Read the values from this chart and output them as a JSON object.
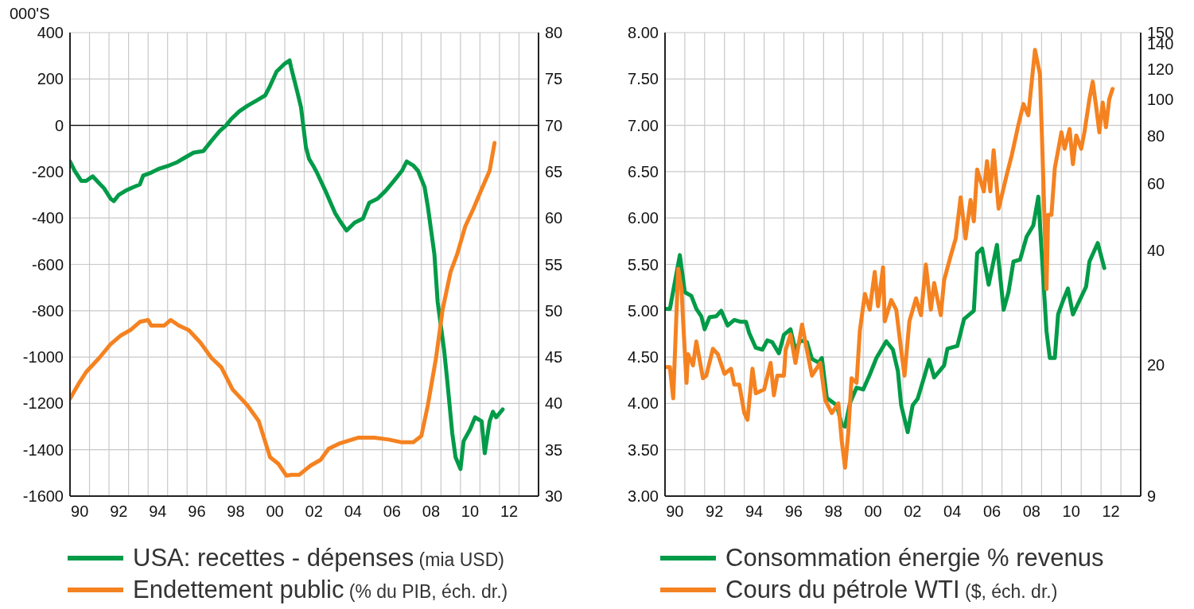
{
  "chart_data": [
    {
      "type": "line",
      "ylabel": "000'S",
      "xlim": [
        "1990-01",
        "2014-01"
      ],
      "xticks": [
        {
          "value": "1990-07",
          "label": "90"
        },
        {
          "value": "1991-01",
          "label": null
        },
        {
          "value": "1992-01",
          "label": null
        },
        {
          "value": "1992-07",
          "label": "92"
        },
        {
          "value": "1993-01",
          "label": null
        },
        {
          "value": "1994-01",
          "label": null
        },
        {
          "value": "1994-07",
          "label": "94"
        },
        {
          "value": "1995-01",
          "label": null
        },
        {
          "value": "1996-01",
          "label": null
        },
        {
          "value": "1996-07",
          "label": "96"
        },
        {
          "value": "1997-01",
          "label": null
        },
        {
          "value": "1998-01",
          "label": null
        },
        {
          "value": "1998-07",
          "label": "98"
        },
        {
          "value": "1999-01",
          "label": null
        },
        {
          "value": "2000-01",
          "label": null
        },
        {
          "value": "2000-07",
          "label": "00"
        },
        {
          "value": "2001-01",
          "label": null
        },
        {
          "value": "2002-01",
          "label": null
        },
        {
          "value": "2002-07",
          "label": "02"
        },
        {
          "value": "2003-01",
          "label": null
        },
        {
          "value": "2004-01",
          "label": null
        },
        {
          "value": "2004-07",
          "label": "04"
        },
        {
          "value": "2005-01",
          "label": null
        },
        {
          "value": "2006-01",
          "label": null
        },
        {
          "value": "2006-07",
          "label": "06"
        },
        {
          "value": "2007-01",
          "label": null
        },
        {
          "value": "2008-01",
          "label": null
        },
        {
          "value": "2008-07",
          "label": "08"
        },
        {
          "value": "2009-01",
          "label": null
        },
        {
          "value": "2010-01",
          "label": null
        },
        {
          "value": "2010-07",
          "label": "10"
        },
        {
          "value": "2011-01",
          "label": null
        },
        {
          "value": "2012-01",
          "label": null
        },
        {
          "value": "2012-07",
          "label": "12"
        },
        {
          "value": "2013-01",
          "label": null
        }
      ],
      "ylim": [
        -1600,
        400
      ],
      "yticks": [
        -1600,
        -1400,
        -1200,
        -1000,
        -800,
        -600,
        -400,
        -200,
        0,
        200,
        400
      ],
      "y2lim": [
        30,
        80
      ],
      "y2ticks": [
        30,
        35,
        40,
        45,
        50,
        55,
        60,
        65,
        70,
        75,
        80
      ],
      "grid": true,
      "legend": "bottom",
      "ref_lines": [
        {
          "axis": "y",
          "value": 0,
          "color": "#000000"
        }
      ],
      "series": [
        {
          "name": "USA: recettes - dépenses (mia USD)",
          "color": "#009b48",
          "x": [
            "1990-01",
            "1990-04",
            "1990-08",
            "1990-11",
            "1991-03",
            "1991-07",
            "1991-10",
            "1992-02",
            "1992-04",
            "1992-07",
            "1992-11",
            "1993-03",
            "1993-08",
            "1993-10",
            "1994-03",
            "1994-08",
            "1995-02",
            "1995-07",
            "1995-11",
            "1996-05",
            "1996-11",
            "1997-04",
            "1997-09",
            "1998-01",
            "1998-04",
            "1998-09",
            "1999-02",
            "1999-08",
            "2000-01",
            "2000-04",
            "2000-08",
            "2001-01",
            "2001-04",
            "2001-05",
            "2001-09",
            "2001-11",
            "2002-02",
            "2002-04",
            "2002-07",
            "2002-09",
            "2003-02",
            "2003-08",
            "2003-11",
            "2004-03",
            "2004-08",
            "2005-01",
            "2005-05",
            "2005-10",
            "2006-03",
            "2006-08",
            "2007-01",
            "2007-04",
            "2007-08",
            "2007-11",
            "2008-03",
            "2008-05",
            "2008-09",
            "2008-11",
            "2009-03",
            "2009-05",
            "2009-08",
            "2009-10",
            "2010-01",
            "2010-03",
            "2010-07",
            "2010-10",
            "2011-02",
            "2011-04",
            "2011-07",
            "2011-09",
            "2011-11",
            "2012-03"
          ],
          "values": [
            -156,
            -197,
            -240,
            -240,
            -220,
            -250,
            -272,
            -317,
            -327,
            -300,
            -283,
            -270,
            -255,
            -217,
            -204,
            -187,
            -173,
            -159,
            -142,
            -118,
            -111,
            -67,
            -25,
            0,
            26,
            60,
            84,
            108,
            129,
            170,
            232,
            266,
            280,
            249,
            136,
            78,
            -94,
            -145,
            -180,
            -207,
            -283,
            -379,
            -413,
            -454,
            -420,
            -403,
            -334,
            -317,
            -283,
            -241,
            -197,
            -156,
            -173,
            -197,
            -266,
            -351,
            -557,
            -763,
            -969,
            -1106,
            -1329,
            -1432,
            -1483,
            -1363,
            -1312,
            -1260,
            -1277,
            -1415,
            -1277,
            -1236,
            -1260,
            -1226
          ]
        },
        {
          "name": "Endettement public (% du PIB, éch. dr.)",
          "color": "#f58220",
          "axis": "y2",
          "x": [
            "1990-01",
            "1990-07",
            "1990-11",
            "1991-07",
            "1992-02",
            "1992-08",
            "1993-02",
            "1993-08",
            "1994-01",
            "1994-03",
            "1994-11",
            "1995-03",
            "1995-08",
            "1996-02",
            "1996-09",
            "1997-04",
            "1997-10",
            "1998-05",
            "1999-02",
            "1999-09",
            "2000-04",
            "2000-09",
            "2001-02",
            "2001-05",
            "2001-10",
            "2002-05",
            "2002-11",
            "2003-04",
            "2003-11",
            "2004-10",
            "2005-08",
            "2006-05",
            "2007-01",
            "2007-08",
            "2008-01",
            "2008-05",
            "2008-10",
            "2009-02",
            "2009-07",
            "2009-11",
            "2010-04",
            "2010-09",
            "2011-02",
            "2011-07",
            "2011-10"
          ],
          "values": [
            40.5,
            42.3,
            43.4,
            44.9,
            46.4,
            47.3,
            47.9,
            48.8,
            49.0,
            48.4,
            48.4,
            49.0,
            48.4,
            47.9,
            46.6,
            44.9,
            43.9,
            41.5,
            39.8,
            38.1,
            34.2,
            33.5,
            32.2,
            32.3,
            32.3,
            33.3,
            33.9,
            35.1,
            35.7,
            36.3,
            36.3,
            36.1,
            35.8,
            35.8,
            36.5,
            39.8,
            44.9,
            50.1,
            54.2,
            56.1,
            59.1,
            61.0,
            63.1,
            65.1,
            68.1
          ]
        }
      ]
    },
    {
      "type": "line",
      "xlim": [
        "1990-01",
        "2014-01"
      ],
      "xticks": [
        {
          "value": "1990-07",
          "label": "90"
        },
        {
          "value": "1991-01",
          "label": null
        },
        {
          "value": "1992-01",
          "label": null
        },
        {
          "value": "1992-07",
          "label": "92"
        },
        {
          "value": "1993-01",
          "label": null
        },
        {
          "value": "1994-01",
          "label": null
        },
        {
          "value": "1994-07",
          "label": "94"
        },
        {
          "value": "1995-01",
          "label": null
        },
        {
          "value": "1996-01",
          "label": null
        },
        {
          "value": "1996-07",
          "label": "96"
        },
        {
          "value": "1997-01",
          "label": null
        },
        {
          "value": "1998-01",
          "label": null
        },
        {
          "value": "1998-07",
          "label": "98"
        },
        {
          "value": "1999-01",
          "label": null
        },
        {
          "value": "2000-01",
          "label": null
        },
        {
          "value": "2000-07",
          "label": "00"
        },
        {
          "value": "2001-01",
          "label": null
        },
        {
          "value": "2002-01",
          "label": null
        },
        {
          "value": "2002-07",
          "label": "02"
        },
        {
          "value": "2003-01",
          "label": null
        },
        {
          "value": "2004-01",
          "label": null
        },
        {
          "value": "2004-07",
          "label": "04"
        },
        {
          "value": "2005-01",
          "label": null
        },
        {
          "value": "2006-01",
          "label": null
        },
        {
          "value": "2006-07",
          "label": "06"
        },
        {
          "value": "2007-01",
          "label": null
        },
        {
          "value": "2008-01",
          "label": null
        },
        {
          "value": "2008-07",
          "label": "08"
        },
        {
          "value": "2009-01",
          "label": null
        },
        {
          "value": "2010-01",
          "label": null
        },
        {
          "value": "2010-07",
          "label": "10"
        },
        {
          "value": "2011-01",
          "label": null
        },
        {
          "value": "2012-01",
          "label": null
        },
        {
          "value": "2012-07",
          "label": "12"
        },
        {
          "value": "2013-01",
          "label": null
        }
      ],
      "ylim": [
        3,
        8
      ],
      "yticks": [
        {
          "value": 3,
          "label": "3.00"
        },
        {
          "value": 3.5,
          "label": "3.50"
        },
        {
          "value": 4,
          "label": "4.00"
        },
        {
          "value": 4.5,
          "label": "4.50"
        },
        {
          "value": 5,
          "label": "5.00"
        },
        {
          "value": 5.5,
          "label": "5.50"
        },
        {
          "value": 6,
          "label": "6.00"
        },
        {
          "value": 6.5,
          "label": "6.50"
        },
        {
          "value": 7,
          "label": "7.00"
        },
        {
          "value": 7.5,
          "label": "7.50"
        },
        {
          "value": 8,
          "label": "8.00"
        }
      ],
      "y2lim": [
        9,
        150
      ],
      "y2ticks": [
        9,
        20,
        40,
        60,
        80,
        100,
        120,
        140,
        150
      ],
      "log": "y2",
      "grid": true,
      "legend": "bottom",
      "series": [
        {
          "name": "Consommation énergie % revenus",
          "color": "#009b48",
          "x": [
            "1990-02",
            "1990-04",
            "1990-10",
            "1991-01",
            "1991-05",
            "1991-08",
            "1991-11",
            "1992-01",
            "1992-04",
            "1992-08",
            "1992-11",
            "1993-03",
            "1993-07",
            "1993-11",
            "1994-02",
            "1994-04",
            "1994-08",
            "1994-12",
            "1995-03",
            "1995-06",
            "1995-10",
            "1996-01",
            "1996-05",
            "1996-08",
            "1996-11",
            "1997-03",
            "1997-06",
            "1997-10",
            "1997-12",
            "1998-03",
            "1998-09",
            "1998-12",
            "1999-02",
            "1999-05",
            "1999-09",
            "2000-01",
            "2000-05",
            "2000-09",
            "2001-03",
            "2001-07",
            "2001-10",
            "2001-12",
            "2002-04",
            "2002-07",
            "2002-10",
            "2003-02",
            "2003-05",
            "2003-08",
            "2004-02",
            "2004-04",
            "2004-10",
            "2005-02",
            "2005-08",
            "2005-10",
            "2006-01",
            "2006-05",
            "2006-10",
            "2007-02",
            "2007-05",
            "2007-08",
            "2007-12",
            "2008-04",
            "2008-08",
            "2008-11",
            "2009-04",
            "2009-06",
            "2009-09",
            "2009-11",
            "2010-02",
            "2010-05",
            "2010-08",
            "2011-04",
            "2011-06",
            "2011-11",
            "2012-03"
          ],
          "values": [
            5.02,
            5.02,
            5.6,
            5.2,
            5.16,
            5.02,
            4.94,
            4.8,
            4.93,
            4.94,
            5.0,
            4.84,
            4.9,
            4.88,
            4.88,
            4.76,
            4.6,
            4.58,
            4.68,
            4.66,
            4.54,
            4.74,
            4.8,
            4.57,
            4.68,
            4.66,
            4.48,
            4.44,
            4.49,
            4.06,
            3.98,
            3.77,
            3.75,
            4.0,
            4.17,
            4.15,
            4.31,
            4.49,
            4.67,
            4.58,
            4.35,
            3.98,
            3.69,
            3.98,
            4.05,
            4.29,
            4.47,
            4.28,
            4.41,
            4.59,
            4.62,
            4.91,
            5.0,
            5.62,
            5.67,
            5.28,
            5.71,
            5.01,
            5.2,
            5.53,
            5.55,
            5.8,
            5.92,
            6.23,
            4.78,
            4.49,
            4.49,
            4.96,
            5.11,
            5.24,
            4.96,
            5.26,
            5.53,
            5.73,
            5.46
          ]
        },
        {
          "name": "Cours du pétrole WTI ($, éch. dr.)",
          "color": "#f58220",
          "axis": "y2",
          "x": [
            "1990-02",
            "1990-04",
            "1990-06",
            "1990-09",
            "1990-11",
            "1990-12",
            "1991-02",
            "1991-03",
            "1991-06",
            "1991-08",
            "1991-12",
            "1992-02",
            "1992-06",
            "1992-09",
            "1993-01",
            "1993-05",
            "1993-07",
            "1993-10",
            "1994-01",
            "1994-03",
            "1994-06",
            "1994-08",
            "1995-01",
            "1995-05",
            "1995-07",
            "1995-09",
            "1996-01",
            "1996-02",
            "1996-05",
            "1996-08",
            "1996-12",
            "1997-03",
            "1997-06",
            "1997-11",
            "1998-02",
            "1998-06",
            "1998-10",
            "1998-12",
            "1999-02",
            "1999-04",
            "1999-06",
            "1999-09",
            "1999-11",
            "2000-02",
            "2000-05",
            "2000-08",
            "2000-10",
            "2001-01",
            "2001-02",
            "2001-06",
            "2001-09",
            "2001-12",
            "2002-02",
            "2002-05",
            "2002-09",
            "2002-12",
            "2003-03",
            "2003-06",
            "2003-08",
            "2003-12",
            "2004-02",
            "2004-06",
            "2004-09",
            "2004-12",
            "2005-03",
            "2005-06",
            "2005-08",
            "2005-10",
            "2006-02",
            "2006-04",
            "2006-06",
            "2006-08",
            "2006-11",
            "2007-04",
            "2007-07",
            "2007-11",
            "2008-02",
            "2008-05",
            "2008-09",
            "2008-12",
            "2009-02",
            "2009-04",
            "2009-05",
            "2009-07",
            "2009-09",
            "2009-11",
            "2010-01",
            "2010-03",
            "2010-06",
            "2010-08",
            "2010-10",
            "2011-01",
            "2011-03",
            "2011-06",
            "2011-08",
            "2011-10",
            "2011-12",
            "2012-02",
            "2012-04",
            "2012-06",
            "2012-08"
          ],
          "values": [
            19.7,
            19.7,
            16.3,
            35.8,
            31.6,
            26.0,
            17.9,
            21.3,
            19.9,
            23.0,
            18.4,
            18.7,
            22.0,
            21.3,
            18.9,
            19.5,
            17.7,
            17.7,
            14.9,
            14.3,
            19.5,
            16.8,
            17.2,
            20.2,
            16.6,
            18.7,
            18.7,
            21.8,
            24.0,
            20.2,
            25.5,
            21.8,
            18.7,
            20.2,
            16.1,
            14.9,
            15.8,
            12.6,
            10.7,
            13.2,
            18.4,
            17.9,
            24.6,
            30.7,
            27.9,
            35.1,
            28.5,
            36.1,
            26.0,
            29.6,
            27.9,
            21.8,
            18.7,
            26.0,
            29.9,
            27.0,
            36.7,
            27.9,
            32.8,
            27.0,
            33.4,
            38.7,
            43.0,
            55.2,
            43.0,
            54.3,
            47.7,
            65.3,
            57.2,
            68.7,
            57.2,
            73.4,
            51.5,
            63.4,
            71.3,
            85.8,
            97.2,
            90.8,
            135,
            116.5,
            61.9,
            31.6,
            49.6,
            49.6,
            65.9,
            73.4,
            81.9,
            74.1,
            83.5,
            67.5,
            80.3,
            74.1,
            81.9,
            100.2,
            111.4,
            96.2,
            81.9,
            98.1,
            84.5,
            100.2,
            106.6
          ]
        }
      ]
    }
  ]
}
